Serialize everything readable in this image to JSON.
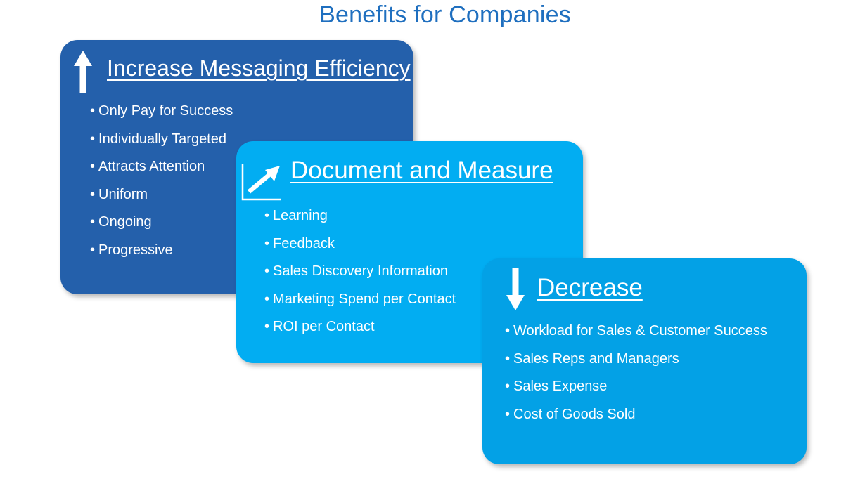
{
  "title": "Benefits for Companies",
  "colors": {
    "title": "#1f6fbf",
    "card1": "#2460ab",
    "card2": "#02adf2",
    "card3": "#03a1e6",
    "text": "#ffffff"
  },
  "cards": [
    {
      "title": "Increase Messaging Efficiency",
      "icon": "arrow-up-icon",
      "items": [
        "Only Pay for Success",
        "Individually Targeted",
        "Attracts Attention",
        "Uniform",
        "Ongoing",
        "Progressive"
      ]
    },
    {
      "title": "Document and Measure",
      "icon": "trend-up-chart-icon",
      "items": [
        "Learning",
        "Feedback",
        "Sales Discovery Information",
        "Marketing Spend per Contact",
        "ROI per Contact"
      ]
    },
    {
      "title": "Decrease",
      "icon": "arrow-down-icon",
      "items": [
        "Workload for Sales  & Customer Success",
        "Sales Reps and Managers",
        "Sales Expense",
        "Cost of Goods Sold"
      ]
    }
  ]
}
